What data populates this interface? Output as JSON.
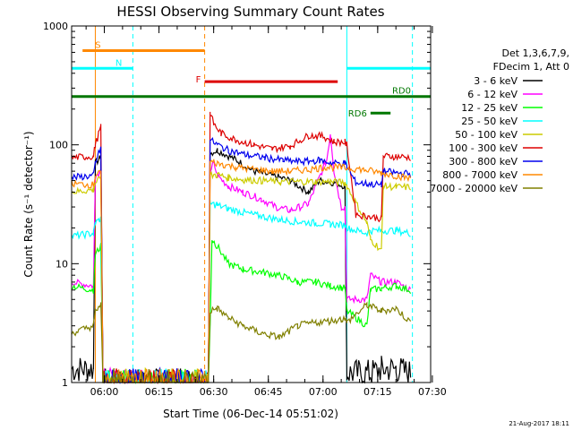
{
  "chart_data": {
    "type": "line",
    "title": "HESSI Observing Summary Count Rates",
    "xlabel": "Start Time (06-Dec-14 05:51:02)",
    "ylabel": "Count Rate (s⁻¹ detector⁻¹)",
    "yscale": "log",
    "ylim": [
      1,
      1000
    ],
    "xlim_minutes": [
      0,
      98.5
    ],
    "x_ticks": [
      "06:00",
      "06:15",
      "06:30",
      "06:45",
      "07:00",
      "07:15",
      "07:30"
    ],
    "x_tick_minutes": [
      8.97,
      23.97,
      38.97,
      53.97,
      68.97,
      83.97,
      98.97
    ],
    "y_ticks": [
      "1",
      "10",
      "100",
      "1000"
    ],
    "y_tick_values": [
      1,
      10,
      100,
      1000
    ],
    "timestamp": "21-Aug-2017 18:11",
    "legend_header": [
      "Det 1,3,6,7,9,",
      "FDecim 1, Att 0"
    ],
    "colors": {
      "black": "#000000",
      "magenta": "#ff00ff",
      "green": "#00ff00",
      "cyan": "#00ffff",
      "yellow": "#cccc00",
      "red": "#dd0000",
      "blue": "#0000ee",
      "orange": "#ff8800",
      "olive": "#808000",
      "darkgreen": "#007700"
    },
    "series": [
      {
        "name": "3 - 6 keV",
        "color": "black",
        "points": [
          [
            0,
            1.3
          ],
          [
            6,
            1.3
          ],
          [
            6.5,
            70
          ],
          [
            8,
            78
          ],
          [
            8.6,
            1
          ],
          [
            37.5,
            1
          ],
          [
            38,
            85
          ],
          [
            40,
            90
          ],
          [
            45,
            75
          ],
          [
            50,
            60
          ],
          [
            55,
            55
          ],
          [
            60,
            50
          ],
          [
            65,
            40
          ],
          [
            68,
            50
          ],
          [
            72,
            48
          ],
          [
            75,
            45
          ],
          [
            75.5,
            1.2
          ],
          [
            82,
            1.2
          ],
          [
            85,
            1.3
          ],
          [
            89,
            1.3
          ],
          [
            93,
            1.2
          ]
        ]
      },
      {
        "name": "6 - 12 keV",
        "color": "magenta",
        "points": [
          [
            0,
            7
          ],
          [
            6,
            6.5
          ],
          [
            6.5,
            55
          ],
          [
            8,
            60
          ],
          [
            8.6,
            1
          ],
          [
            37.5,
            1
          ],
          [
            38,
            60
          ],
          [
            39,
            70
          ],
          [
            40,
            55
          ],
          [
            43,
            45
          ],
          [
            47,
            40
          ],
          [
            52,
            35
          ],
          [
            56,
            30
          ],
          [
            60,
            28
          ],
          [
            65,
            32
          ],
          [
            70,
            75
          ],
          [
            71,
            125
          ],
          [
            72,
            60
          ],
          [
            74,
            30
          ],
          [
            75,
            30
          ],
          [
            75.5,
            5
          ],
          [
            81,
            5
          ],
          [
            82,
            8
          ],
          [
            85,
            7
          ],
          [
            89,
            7
          ],
          [
            93,
            6
          ]
        ]
      },
      {
        "name": "12 - 25 keV",
        "color": "green",
        "points": [
          [
            0,
            6.5
          ],
          [
            6,
            6
          ],
          [
            6.5,
            12
          ],
          [
            8,
            14
          ],
          [
            8.6,
            1
          ],
          [
            37.5,
            1
          ],
          [
            38,
            3
          ],
          [
            38.5,
            16
          ],
          [
            40,
            14
          ],
          [
            43,
            10
          ],
          [
            47,
            9
          ],
          [
            52,
            8.5
          ],
          [
            57,
            8
          ],
          [
            62,
            7
          ],
          [
            67,
            7
          ],
          [
            71,
            6.5
          ],
          [
            74,
            6.3
          ],
          [
            75,
            6.2
          ],
          [
            75.5,
            4
          ],
          [
            81,
            3
          ],
          [
            82,
            6
          ],
          [
            85,
            6.2
          ],
          [
            89,
            6.5
          ],
          [
            93,
            6
          ]
        ]
      },
      {
        "name": "25 - 50 keV",
        "color": "cyan",
        "points": [
          [
            0,
            17
          ],
          [
            6,
            18
          ],
          [
            6.5,
            22
          ],
          [
            8,
            24
          ],
          [
            8.6,
            1
          ],
          [
            37.5,
            1
          ],
          [
            38,
            32
          ],
          [
            40,
            31
          ],
          [
            43,
            29
          ],
          [
            47,
            27
          ],
          [
            52,
            25
          ],
          [
            57,
            23.5
          ],
          [
            62,
            22.5
          ],
          [
            67,
            22
          ],
          [
            71,
            21.5
          ],
          [
            75,
            21
          ],
          [
            75.5,
            20
          ],
          [
            81,
            18
          ],
          [
            82,
            19
          ],
          [
            85,
            19
          ],
          [
            89,
            19
          ],
          [
            93,
            18
          ]
        ]
      },
      {
        "name": "50 - 100 keV",
        "color": "yellow",
        "points": [
          [
            0,
            40
          ],
          [
            6,
            42
          ],
          [
            6.5,
            48
          ],
          [
            8,
            52
          ],
          [
            8.6,
            1
          ],
          [
            37.5,
            1
          ],
          [
            38,
            55
          ],
          [
            40,
            56
          ],
          [
            43,
            53
          ],
          [
            47,
            51
          ],
          [
            52,
            50
          ],
          [
            57,
            49
          ],
          [
            62,
            49
          ],
          [
            67,
            49
          ],
          [
            71,
            49
          ],
          [
            75,
            48
          ],
          [
            75.5,
            45
          ],
          [
            81,
            22
          ],
          [
            82,
            16
          ],
          [
            85,
            13
          ],
          [
            85.5,
            45
          ],
          [
            89,
            44
          ],
          [
            93,
            44
          ]
        ]
      },
      {
        "name": "100 - 300 keV",
        "color": "red",
        "points": [
          [
            0,
            78
          ],
          [
            6,
            80
          ],
          [
            6.5,
            100
          ],
          [
            8,
            140
          ],
          [
            8.6,
            1
          ],
          [
            37.5,
            1
          ],
          [
            38,
            185
          ],
          [
            39,
            150
          ],
          [
            41,
            125
          ],
          [
            45,
            110
          ],
          [
            50,
            100
          ],
          [
            55,
            92
          ],
          [
            60,
            98
          ],
          [
            65,
            120
          ],
          [
            69,
            118
          ],
          [
            72,
            106
          ],
          [
            75,
            105
          ],
          [
            75.5,
            100
          ],
          [
            78,
            26
          ],
          [
            81,
            25
          ],
          [
            85,
            24
          ],
          [
            85.5,
            80
          ],
          [
            89,
            80
          ],
          [
            93,
            78
          ]
        ]
      },
      {
        "name": "300 - 800 keV",
        "color": "blue",
        "points": [
          [
            0,
            53
          ],
          [
            6,
            55
          ],
          [
            6.5,
            70
          ],
          [
            8,
            95
          ],
          [
            8.6,
            1
          ],
          [
            37.5,
            1
          ],
          [
            38,
            110
          ],
          [
            40,
            100
          ],
          [
            43,
            90
          ],
          [
            48,
            82
          ],
          [
            53,
            78
          ],
          [
            58,
            74
          ],
          [
            63,
            72
          ],
          [
            68,
            74
          ],
          [
            72,
            70
          ],
          [
            75,
            70
          ],
          [
            75.5,
            65
          ],
          [
            78,
            48
          ],
          [
            81,
            47
          ],
          [
            85,
            46
          ],
          [
            85.5,
            60
          ],
          [
            89,
            58
          ],
          [
            93,
            57
          ]
        ]
      },
      {
        "name": "800 - 7000 keV",
        "color": "orange",
        "points": [
          [
            0,
            47
          ],
          [
            6,
            46
          ],
          [
            6.5,
            55
          ],
          [
            8,
            58
          ],
          [
            8.6,
            1
          ],
          [
            37.5,
            1
          ],
          [
            38,
            72
          ],
          [
            40,
            70
          ],
          [
            45,
            65
          ],
          [
            50,
            62
          ],
          [
            55,
            60
          ],
          [
            60,
            60
          ],
          [
            65,
            62
          ],
          [
            70,
            65
          ],
          [
            75,
            64
          ],
          [
            80,
            62
          ],
          [
            85,
            58
          ],
          [
            89,
            55
          ],
          [
            93,
            52
          ]
        ]
      },
      {
        "name": "7000 - 20000 keV",
        "color": "olive",
        "points": [
          [
            0,
            2.6
          ],
          [
            6,
            3
          ],
          [
            6.5,
            4
          ],
          [
            8,
            4.5
          ],
          [
            8.6,
            1
          ],
          [
            37.5,
            1
          ],
          [
            38,
            4
          ],
          [
            40,
            4.2
          ],
          [
            43,
            3.5
          ],
          [
            47,
            3
          ],
          [
            52,
            2.6
          ],
          [
            57,
            2.4
          ],
          [
            62,
            3
          ],
          [
            67,
            3.2
          ],
          [
            71,
            3.3
          ],
          [
            74,
            3.4
          ],
          [
            75,
            3.5
          ],
          [
            75.5,
            3.2
          ],
          [
            81,
            4.5
          ],
          [
            85,
            4
          ],
          [
            89,
            4.2
          ],
          [
            93,
            3.2
          ]
        ]
      }
    ],
    "vertical_markers": [
      {
        "x": 6.5,
        "style": "solid",
        "color": "orange"
      },
      {
        "x": 16.8,
        "style": "dashed",
        "color": "cyan"
      },
      {
        "x": 36.5,
        "style": "dashed",
        "color": "orange"
      },
      {
        "x": 75.5,
        "style": "solid",
        "color": "cyan"
      },
      {
        "x": 93.5,
        "style": "dashed",
        "color": "cyan"
      }
    ],
    "flag_bars": [
      {
        "label": "S",
        "color": "orange",
        "x0": 3,
        "x1": 36.5,
        "y": 620
      },
      {
        "label": "N",
        "color": "cyan",
        "x0": 0,
        "x1": 16.8,
        "y": 440
      },
      {
        "label": "F",
        "color": "red",
        "x0": 36.5,
        "x1": 73,
        "y": 340
      },
      {
        "label": "",
        "color": "cyan",
        "x0": 75.5,
        "x1": 98.5,
        "y": 440
      },
      {
        "label": "RD0",
        "color": "darkgreen",
        "x0": 0,
        "x1": 98.5,
        "y": 255,
        "label_pos": "above-right"
      },
      {
        "label": "RD6",
        "color": "darkgreen",
        "x0": 82,
        "x1": 87.5,
        "y": 185,
        "label_pos": "left"
      }
    ]
  }
}
